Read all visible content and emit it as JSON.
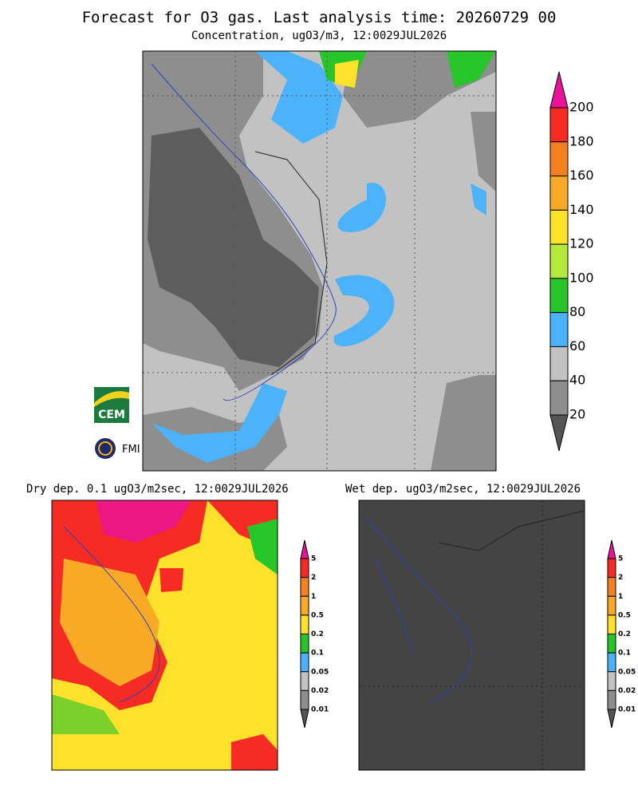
{
  "header": {
    "title": "Forecast for O3 gas. Last analysis time: 20260729 00",
    "subtitle": "Concentration, ugO3/m3, 12:0029JUL2026"
  },
  "main_map": {
    "colorbar": {
      "labels": [
        "200",
        "180",
        "160",
        "140",
        "120",
        "100",
        "80",
        "60",
        "40",
        "20"
      ],
      "colors": [
        "#e8139a",
        "#f52b24",
        "#f5801f",
        "#f8a926",
        "#fde12b",
        "#b3ea3b",
        "#27c42a",
        "#4cb3fb",
        "#c2c2c2",
        "#8e8e8e",
        "#555555"
      ]
    }
  },
  "logos": {
    "cem": "CEM",
    "fmi": "FMI"
  },
  "dry_dep": {
    "title": "Dry dep. 0.1 ugO3/m2sec, 12:0029JUL2026",
    "colorbar": {
      "labels": [
        "5",
        "2",
        "1",
        "0.5",
        "0.2",
        "0.1",
        "0.05",
        "0.02",
        "0.01"
      ],
      "colors": [
        "#e8139a",
        "#f52b24",
        "#f5801f",
        "#f8a926",
        "#fde12b",
        "#27c42a",
        "#4cb3fb",
        "#c2c2c2",
        "#8e8e8e",
        "#555555"
      ]
    }
  },
  "wet_dep": {
    "title": "Wet dep. ugO3/m2sec, 12:0029JUL2026",
    "colorbar": {
      "labels": [
        "5",
        "2",
        "1",
        "0.5",
        "0.2",
        "0.1",
        "0.05",
        "0.02",
        "0.01"
      ],
      "colors": [
        "#e8139a",
        "#f52b24",
        "#f5801f",
        "#f8a926",
        "#fde12b",
        "#27c42a",
        "#4cb3fb",
        "#c2c2c2",
        "#8e8e8e",
        "#555555"
      ]
    }
  }
}
